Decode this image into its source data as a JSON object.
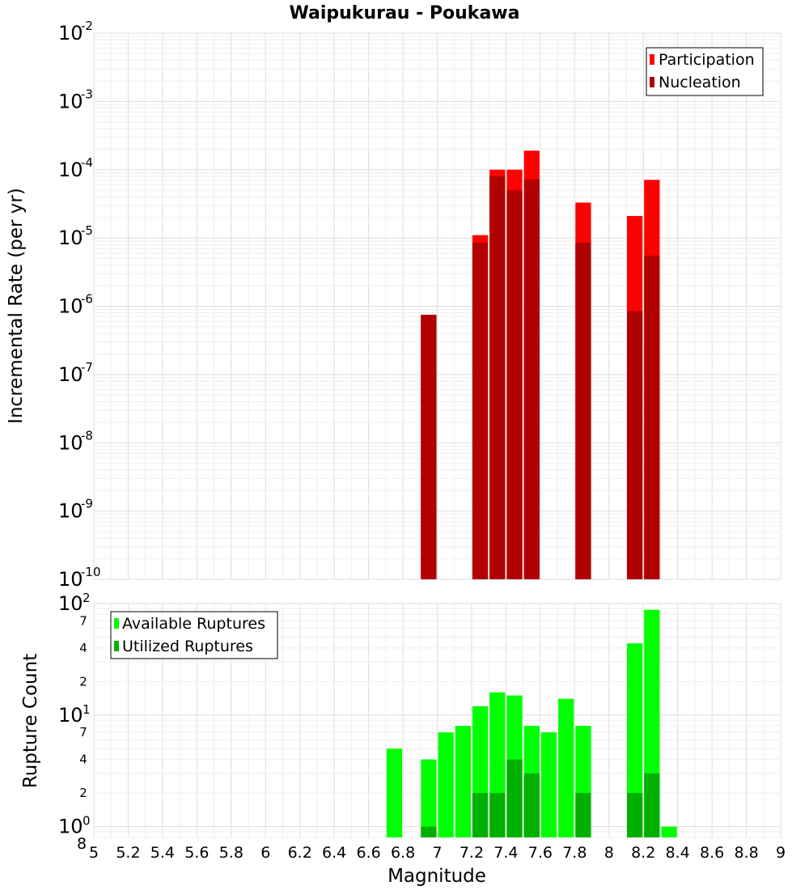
{
  "chart_data": [
    {
      "type": "bar",
      "title": "Waipukurau - Poukawa",
      "xlabel": "",
      "ylabel": "Incremental Rate (per yr)",
      "yscale": "log",
      "ylim": [
        1e-10,
        0.01
      ],
      "xlim": [
        5,
        9
      ],
      "grid": true,
      "legend_position": "top-right",
      "y_tick_labels": [
        {
          "v": 1e-10,
          "base": "10",
          "exp": "-10"
        },
        {
          "v": 1e-09,
          "base": "10",
          "exp": "-9"
        },
        {
          "v": 1e-08,
          "base": "10",
          "exp": "-8"
        },
        {
          "v": 1e-07,
          "base": "10",
          "exp": "-7"
        },
        {
          "v": 1e-06,
          "base": "10",
          "exp": "-6"
        },
        {
          "v": 1e-05,
          "base": "10",
          "exp": "-5"
        },
        {
          "v": 0.0001,
          "base": "10",
          "exp": "-4"
        },
        {
          "v": 0.001,
          "base": "10",
          "exp": "-3"
        },
        {
          "v": 0.01,
          "base": "10",
          "exp": "-2"
        }
      ],
      "series": [
        {
          "name": "Participation",
          "color": "#ff0000",
          "points": [
            {
              "x": 6.95,
              "y": 7.5e-07
            },
            {
              "x": 7.25,
              "y": 1.1e-05
            },
            {
              "x": 7.35,
              "y": 0.0001
            },
            {
              "x": 7.45,
              "y": 0.0001
            },
            {
              "x": 7.55,
              "y": 0.00019
            },
            {
              "x": 7.85,
              "y": 3.3e-05
            },
            {
              "x": 8.15,
              "y": 2.1e-05
            },
            {
              "x": 8.25,
              "y": 7.1e-05
            }
          ]
        },
        {
          "name": "Nucleation",
          "color": "#b00000",
          "points": [
            {
              "x": 6.95,
              "y": 7.5e-07
            },
            {
              "x": 7.25,
              "y": 8.5e-06
            },
            {
              "x": 7.35,
              "y": 8e-05
            },
            {
              "x": 7.45,
              "y": 5e-05
            },
            {
              "x": 7.55,
              "y": 7.2e-05
            },
            {
              "x": 7.85,
              "y": 8.5e-06
            },
            {
              "x": 8.15,
              "y": 8.5e-07
            },
            {
              "x": 8.25,
              "y": 5.5e-06
            }
          ]
        }
      ]
    },
    {
      "type": "bar",
      "title": "",
      "xlabel": "Magnitude",
      "ylabel": "Rupture Count",
      "yscale": "log",
      "ylim": [
        0.8,
        100
      ],
      "xlim": [
        5,
        9
      ],
      "grid": true,
      "legend_position": "top-left",
      "x_tick_labels": [
        "5",
        "5.2",
        "5.4",
        "5.6",
        "5.8",
        "6",
        "6.2",
        "6.4",
        "6.6",
        "6.8",
        "7",
        "7.2",
        "7.4",
        "7.6",
        "7.8",
        "8",
        "8.2",
        "8.4",
        "8.6",
        "8.8",
        "9"
      ],
      "y_tick_labels": [
        {
          "v": 100,
          "base": "10",
          "exp": "2"
        },
        {
          "v": 70,
          "label": "7"
        },
        {
          "v": 40,
          "label": "4"
        },
        {
          "v": 20,
          "label": "2"
        },
        {
          "v": 10,
          "base": "10",
          "exp": "1"
        },
        {
          "v": 7,
          "label": "7"
        },
        {
          "v": 4,
          "label": "4"
        },
        {
          "v": 2,
          "label": "2"
        },
        {
          "v": 1,
          "base": "10",
          "exp": "0"
        },
        {
          "v": 0.8,
          "label": "8"
        }
      ],
      "series": [
        {
          "name": "Available Ruptures",
          "color": "#00ff00",
          "points": [
            {
              "x": 6.75,
              "y": 5
            },
            {
              "x": 6.95,
              "y": 4
            },
            {
              "x": 7.05,
              "y": 7
            },
            {
              "x": 7.15,
              "y": 8
            },
            {
              "x": 7.25,
              "y": 12
            },
            {
              "x": 7.35,
              "y": 16
            },
            {
              "x": 7.45,
              "y": 15
            },
            {
              "x": 7.55,
              "y": 8
            },
            {
              "x": 7.65,
              "y": 7
            },
            {
              "x": 7.75,
              "y": 14
            },
            {
              "x": 7.85,
              "y": 8
            },
            {
              "x": 8.15,
              "y": 44
            },
            {
              "x": 8.25,
              "y": 88
            },
            {
              "x": 8.35,
              "y": 1
            }
          ]
        },
        {
          "name": "Utilized Ruptures",
          "color": "#00b000",
          "points": [
            {
              "x": 6.95,
              "y": 1
            },
            {
              "x": 7.25,
              "y": 2
            },
            {
              "x": 7.35,
              "y": 2
            },
            {
              "x": 7.45,
              "y": 4
            },
            {
              "x": 7.55,
              "y": 3
            },
            {
              "x": 7.85,
              "y": 2
            },
            {
              "x": 8.15,
              "y": 2
            },
            {
              "x": 8.25,
              "y": 3
            }
          ]
        }
      ]
    }
  ]
}
